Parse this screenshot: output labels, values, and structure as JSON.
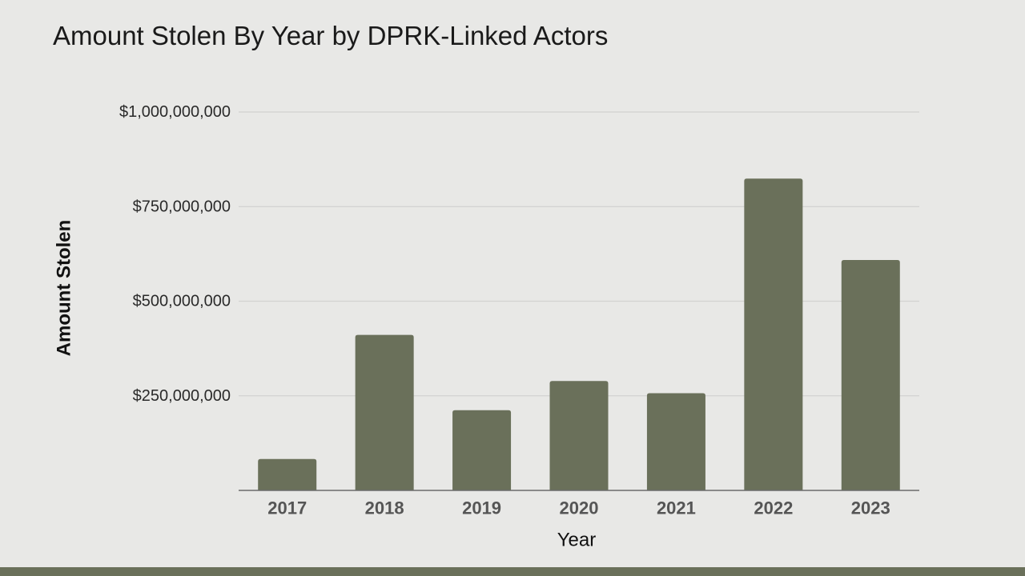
{
  "colors": {
    "background": "#e8e8e6",
    "bar": "#6a705a",
    "gridline": "#d2d2d0",
    "baseline": "#6b6b6b",
    "bottom_band": "#6a705a"
  },
  "chart_data": {
    "type": "bar",
    "title": "Amount Stolen By Year by DPRK-Linked Actors",
    "xlabel": "Year",
    "ylabel": "Amount Stolen",
    "categories": [
      "2017",
      "2018",
      "2019",
      "2020",
      "2021",
      "2022",
      "2023"
    ],
    "series": [
      {
        "values": [
          83000000,
          411000000,
          212000000,
          289000000,
          257000000,
          824000000,
          609000000
        ]
      }
    ],
    "ylim": [
      0,
      1000000000
    ],
    "yticks": [
      250000000,
      500000000,
      750000000,
      1000000000
    ],
    "ytick_labels": [
      "$250,000,000",
      "$500,000,000",
      "$750,000,000",
      "$1,000,000,000"
    ],
    "grid": true,
    "legend": "none"
  }
}
